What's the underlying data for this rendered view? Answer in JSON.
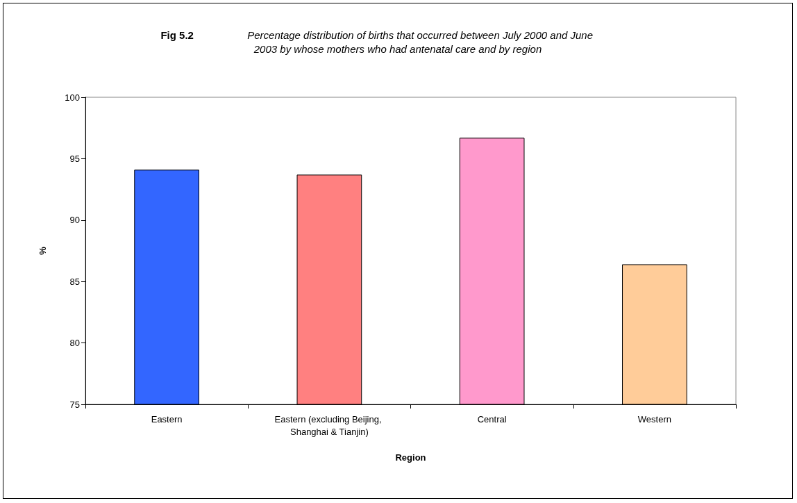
{
  "chart_data": {
    "type": "bar",
    "title": "Fig 5.2 Percentage distribution of births that occurred between July 2000 and June 2003 by whose mothers who had antenatal care and by region",
    "xlabel": "Region",
    "ylabel": "%",
    "categories": [
      "Eastern",
      "Eastern (excluding Beijing, Shanghai & Tianjin)",
      "Central",
      "Western"
    ],
    "values": [
      94.1,
      93.7,
      96.7,
      86.4
    ],
    "colors": [
      "#3366ff",
      "#ff8080",
      "#ff99cc",
      "#ffcc99"
    ],
    "ylim": [
      75,
      100
    ],
    "yticks": [
      75,
      80,
      85,
      90,
      95,
      100
    ],
    "grid": false
  }
}
